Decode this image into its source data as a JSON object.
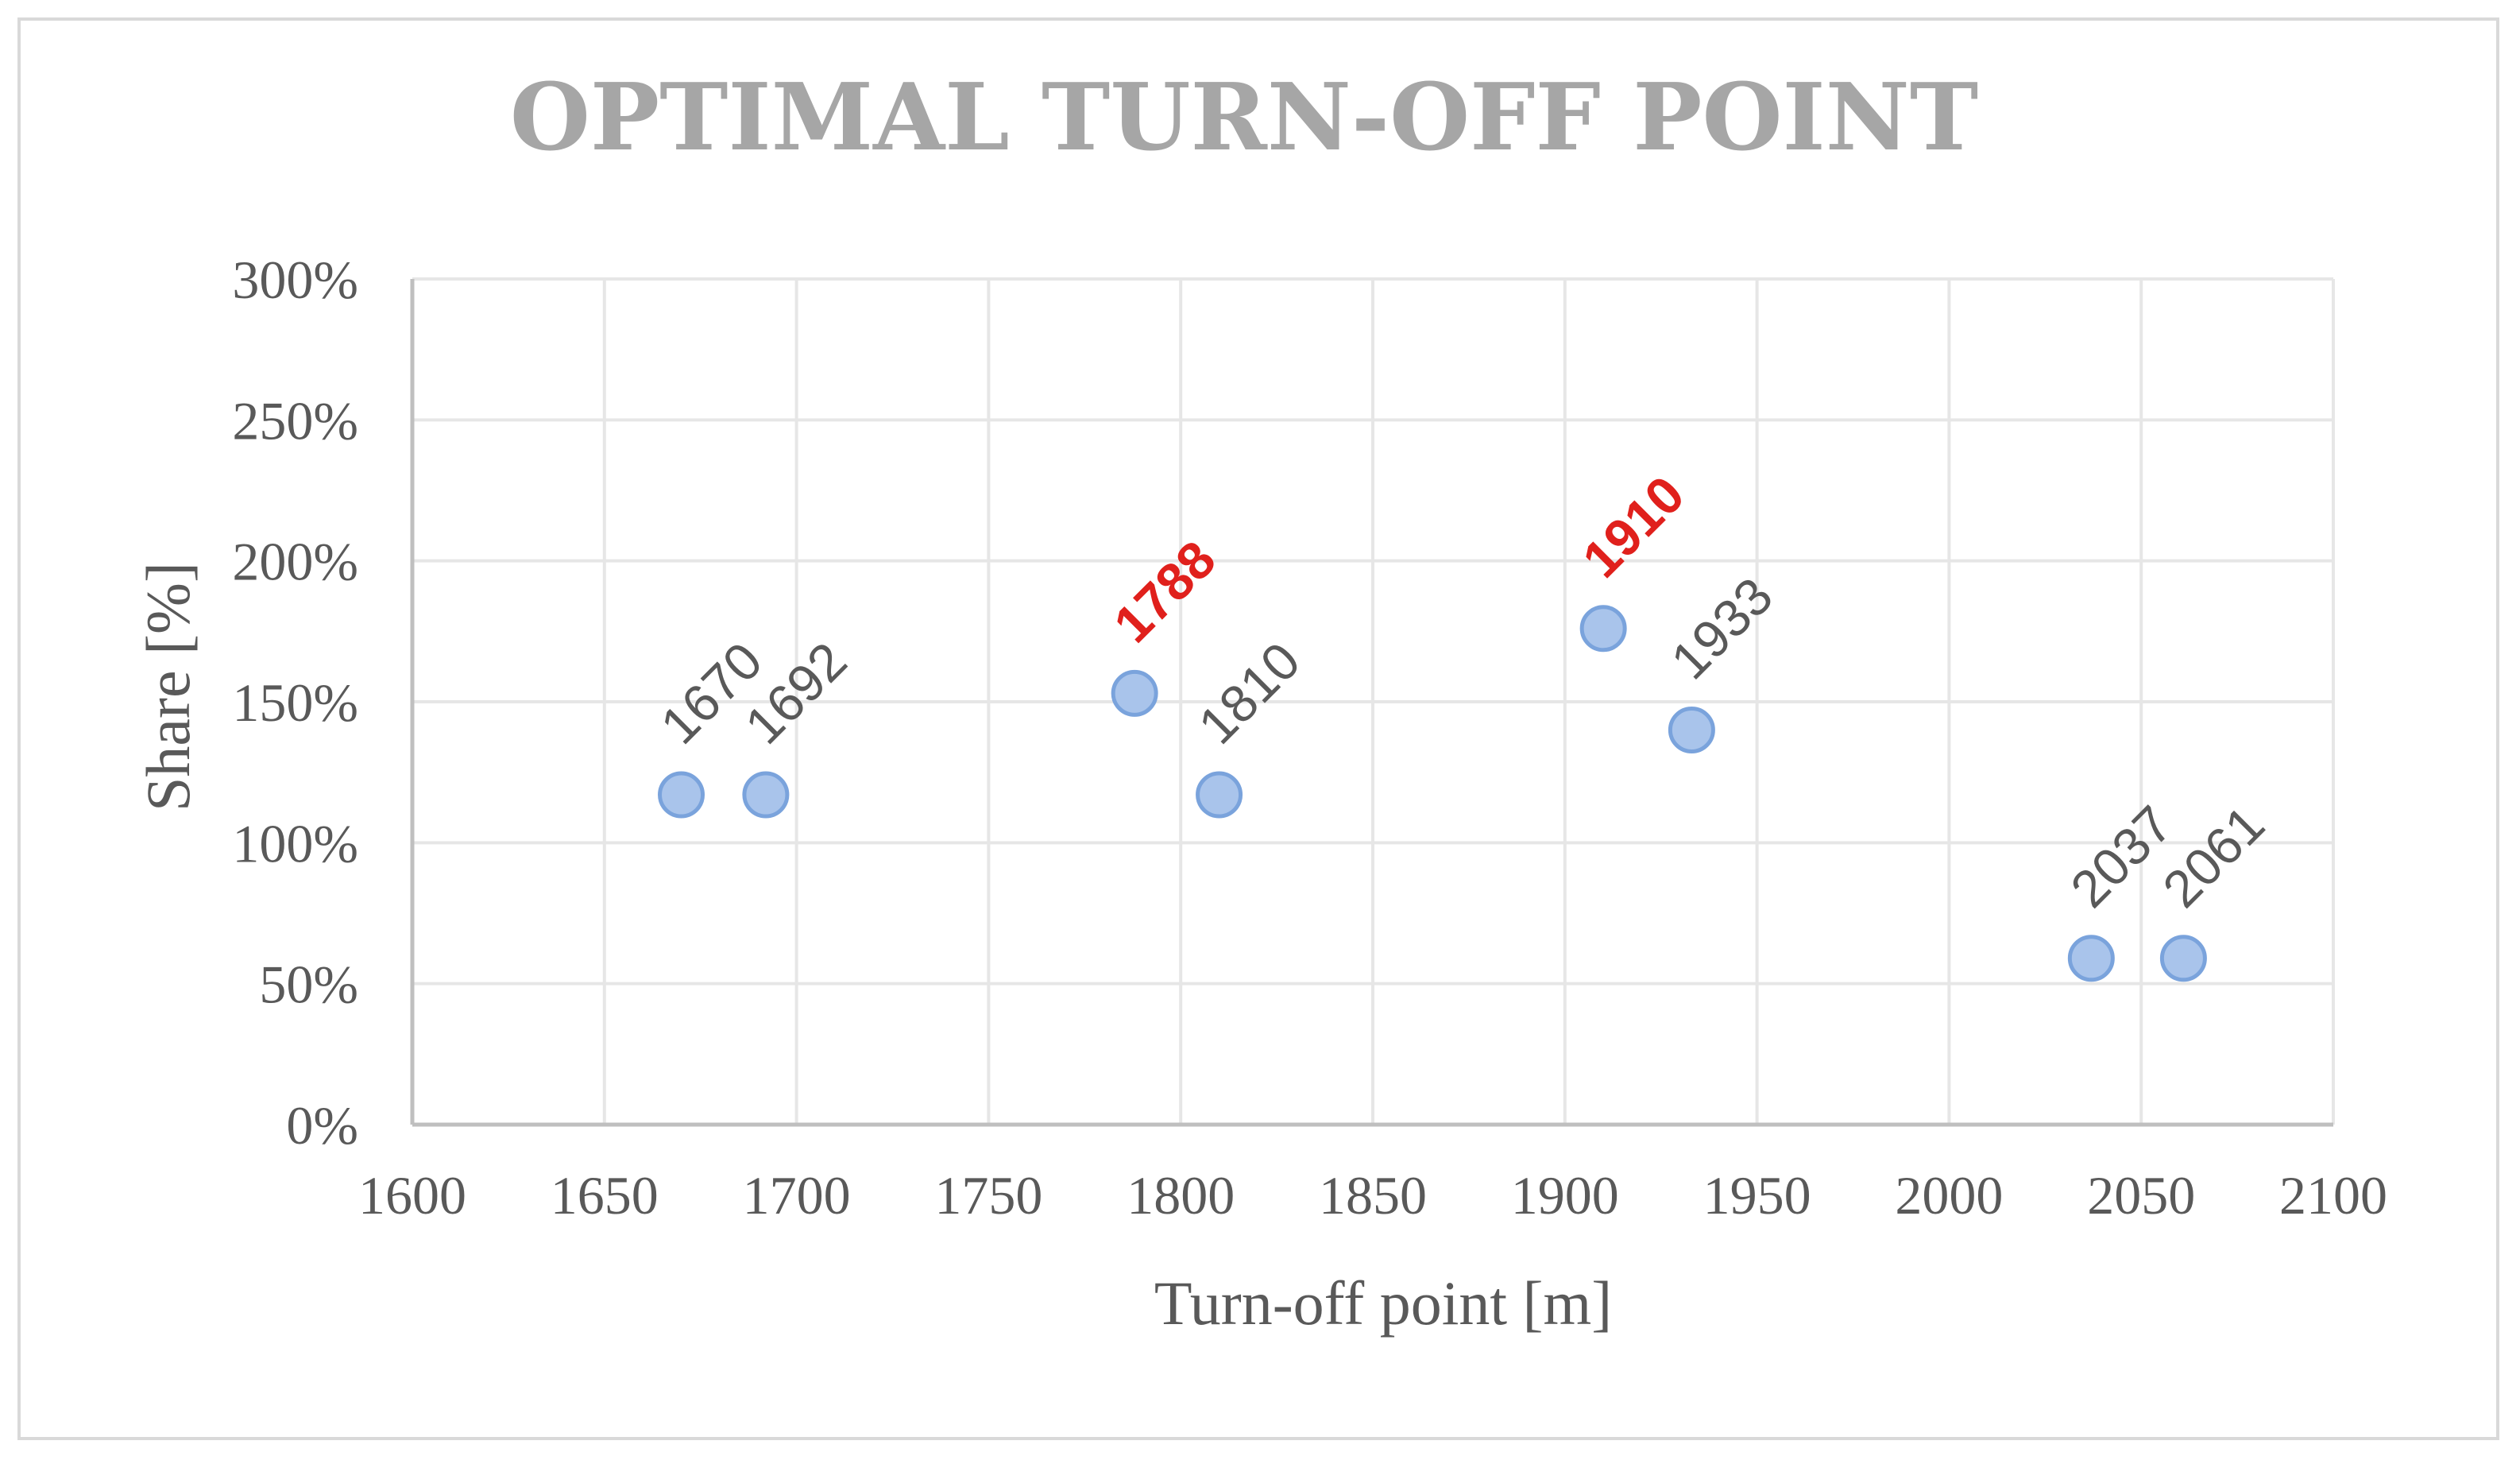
{
  "chart_data": {
    "type": "scatter",
    "title": "OPTIMAL TURN-OFF POINT",
    "xlabel": "Turn-off point [m]",
    "ylabel": "Share [%]",
    "xlim": [
      1600,
      2100
    ],
    "ylim": [
      0,
      300
    ],
    "x_ticks": [
      1600,
      1650,
      1700,
      1750,
      1800,
      1850,
      1900,
      1950,
      2000,
      2050,
      2100
    ],
    "y_ticks": [
      0,
      50,
      100,
      150,
      200,
      250,
      300
    ],
    "x_tick_labels": [
      "1600",
      "1650",
      "1700",
      "1750",
      "1800",
      "1850",
      "1900",
      "1950",
      "2000",
      "2050",
      "2100"
    ],
    "y_tick_labels": [
      "0%",
      "50%",
      "100%",
      "150%",
      "200%",
      "250%",
      "300%"
    ],
    "grid": true,
    "points": [
      {
        "x": 1670,
        "y": 117,
        "label": "1670",
        "highlight": false
      },
      {
        "x": 1692,
        "y": 117,
        "label": "1692",
        "highlight": false
      },
      {
        "x": 1788,
        "y": 153,
        "label": "1788",
        "highlight": true
      },
      {
        "x": 1810,
        "y": 117,
        "label": "1810",
        "highlight": false
      },
      {
        "x": 1910,
        "y": 176,
        "label": "1910",
        "highlight": true
      },
      {
        "x": 1933,
        "y": 140,
        "label": "1933",
        "highlight": false
      },
      {
        "x": 2037,
        "y": 59,
        "label": "2037",
        "highlight": false
      },
      {
        "x": 2061,
        "y": 59,
        "label": "2061",
        "highlight": false
      }
    ],
    "marker_fill": "#a9c4eb",
    "marker_stroke": "#7aa3dc",
    "highlight_label_color": "#e0201c",
    "label_color": "#595959"
  }
}
